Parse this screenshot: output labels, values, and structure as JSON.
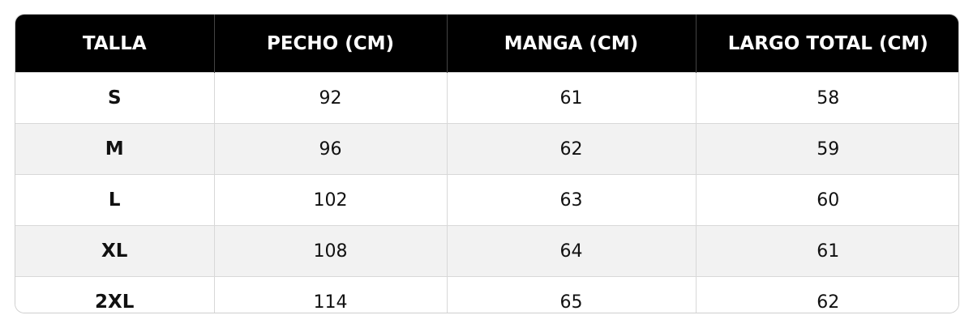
{
  "table": {
    "header": [
      "TALLA",
      "PECHO (CM)",
      "MANGA (CM)",
      "LARGO TOTAL (CM)"
    ],
    "rows": [
      [
        "S",
        92,
        61,
        58
      ],
      [
        "M",
        96,
        62,
        59
      ],
      [
        "L",
        102,
        63,
        60
      ],
      [
        "XL",
        108,
        64,
        61
      ],
      [
        "2XL",
        114,
        65,
        62
      ]
    ]
  }
}
